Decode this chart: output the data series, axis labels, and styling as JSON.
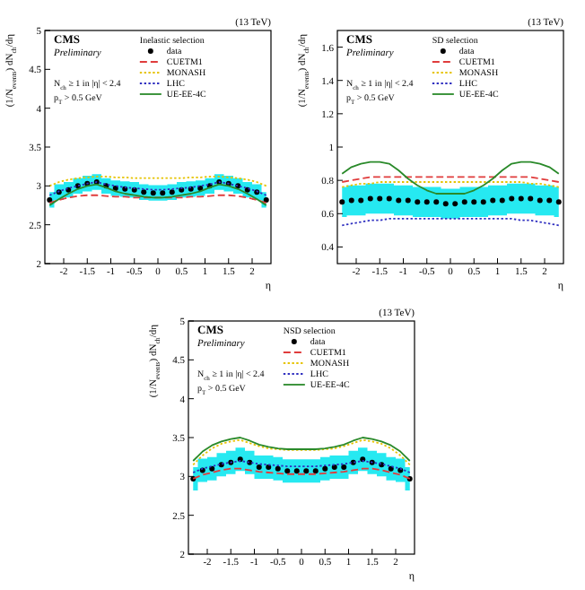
{
  "chart_data": [
    {
      "type": "line",
      "legend_title": "Inelastic selection",
      "xlabel": "η",
      "ylabel": "(1/N$_{events}$) dN$_{ch}$/dη",
      "annotations": [
        "CMS",
        "Preliminary",
        "N$_{ch}$ ≥ 1 in |η| < 2.4",
        "p$_{T}$ > 0.5 GeV",
        "(13 TeV)"
      ],
      "xlim": [
        -2.4,
        2.4
      ],
      "xticks": [
        -2,
        -1.5,
        -1,
        -0.5,
        0,
        0.5,
        1,
        1.5,
        2
      ],
      "ylim": [
        2,
        5
      ],
      "yticks": [
        2,
        2.5,
        3,
        3.5,
        4,
        4.5,
        5
      ],
      "legend": "top right",
      "x": [
        -2.3,
        -2.1,
        -1.9,
        -1.7,
        -1.5,
        -1.3,
        -1.1,
        -0.9,
        -0.7,
        -0.5,
        -0.3,
        -0.1,
        0.1,
        0.3,
        0.5,
        0.7,
        0.9,
        1.1,
        1.3,
        1.5,
        1.7,
        1.9,
        2.1,
        2.3
      ],
      "series": [
        {
          "name": "data",
          "type": "scatter",
          "marker": "circle",
          "color": "#000000",
          "values": [
            2.82,
            2.92,
            2.95,
            3.0,
            3.03,
            3.05,
            3.0,
            2.97,
            2.96,
            2.95,
            2.92,
            2.91,
            2.91,
            2.92,
            2.95,
            2.96,
            2.97,
            3.0,
            3.05,
            3.03,
            3.0,
            2.95,
            2.92,
            2.82
          ],
          "lower": [
            2.72,
            2.82,
            2.85,
            2.9,
            2.93,
            2.95,
            2.9,
            2.87,
            2.86,
            2.85,
            2.82,
            2.81,
            2.81,
            2.82,
            2.85,
            2.86,
            2.87,
            2.9,
            2.95,
            2.93,
            2.9,
            2.85,
            2.82,
            2.72
          ],
          "upper": [
            2.92,
            3.02,
            3.05,
            3.1,
            3.13,
            3.15,
            3.1,
            3.07,
            3.06,
            3.05,
            3.02,
            3.01,
            3.01,
            3.02,
            3.05,
            3.06,
            3.07,
            3.1,
            3.15,
            3.13,
            3.1,
            3.05,
            3.02,
            2.92
          ]
        },
        {
          "name": "CUETM1",
          "line_style": "dashed",
          "color": "#e03c3c",
          "values": [
            2.78,
            2.82,
            2.85,
            2.87,
            2.88,
            2.88,
            2.87,
            2.86,
            2.86,
            2.85,
            2.85,
            2.85,
            2.85,
            2.85,
            2.85,
            2.86,
            2.86,
            2.87,
            2.88,
            2.88,
            2.87,
            2.85,
            2.82,
            2.78
          ]
        },
        {
          "name": "MONASH",
          "line_style": "dotted",
          "color": "#e6c300",
          "values": [
            3.0,
            3.05,
            3.08,
            3.1,
            3.11,
            3.12,
            3.12,
            3.11,
            3.11,
            3.1,
            3.1,
            3.1,
            3.1,
            3.1,
            3.1,
            3.11,
            3.11,
            3.12,
            3.12,
            3.11,
            3.1,
            3.08,
            3.05,
            3.0
          ]
        },
        {
          "name": "LHC",
          "line_style": "dotted",
          "color": "#3030c0",
          "values": [
            2.88,
            2.93,
            2.97,
            3.0,
            3.03,
            3.05,
            3.02,
            3.0,
            2.98,
            2.97,
            2.96,
            2.95,
            2.95,
            2.96,
            2.97,
            2.98,
            3.0,
            3.02,
            3.05,
            3.03,
            3.0,
            2.97,
            2.93,
            2.88
          ]
        },
        {
          "name": "UE-EE-4C",
          "line_style": "solid",
          "color": "#2a8a2a",
          "values": [
            2.75,
            2.83,
            2.9,
            2.96,
            3.0,
            3.02,
            2.98,
            2.93,
            2.9,
            2.88,
            2.86,
            2.85,
            2.85,
            2.86,
            2.88,
            2.9,
            2.93,
            2.98,
            3.02,
            3.0,
            2.96,
            2.9,
            2.83,
            2.75
          ]
        }
      ]
    },
    {
      "type": "line",
      "legend_title": "SD selection",
      "xlabel": "η",
      "ylabel": "(1/N$_{events}$) dN$_{ch}$/dη",
      "annotations": [
        "CMS",
        "Preliminary",
        "N$_{ch}$ ≥ 1 in |η| < 2.4",
        "p$_{T}$ > 0.5 GeV",
        "(13 TeV)"
      ],
      "xlim": [
        -2.4,
        2.4
      ],
      "xticks": [
        -2,
        -1.5,
        -1,
        -0.5,
        0,
        0.5,
        1,
        1.5,
        2
      ],
      "ylim": [
        0.3,
        1.7
      ],
      "yticks": [
        0.4,
        0.6,
        0.8,
        1,
        1.2,
        1.4,
        1.6
      ],
      "legend": "top right",
      "x": [
        -2.3,
        -2.1,
        -1.9,
        -1.7,
        -1.5,
        -1.3,
        -1.1,
        -0.9,
        -0.7,
        -0.5,
        -0.3,
        -0.1,
        0.1,
        0.3,
        0.5,
        0.7,
        0.9,
        1.1,
        1.3,
        1.5,
        1.7,
        1.9,
        2.1,
        2.3
      ],
      "series": [
        {
          "name": "data",
          "type": "scatter",
          "marker": "circle",
          "color": "#000000",
          "values": [
            0.67,
            0.68,
            0.68,
            0.69,
            0.69,
            0.69,
            0.68,
            0.68,
            0.67,
            0.67,
            0.67,
            0.66,
            0.66,
            0.67,
            0.67,
            0.67,
            0.68,
            0.68,
            0.69,
            0.69,
            0.69,
            0.68,
            0.68,
            0.67
          ],
          "lower": [
            0.58,
            0.59,
            0.59,
            0.6,
            0.6,
            0.6,
            0.59,
            0.59,
            0.58,
            0.58,
            0.58,
            0.57,
            0.57,
            0.58,
            0.58,
            0.58,
            0.59,
            0.59,
            0.6,
            0.6,
            0.6,
            0.59,
            0.59,
            0.58
          ],
          "upper": [
            0.76,
            0.77,
            0.77,
            0.78,
            0.78,
            0.78,
            0.77,
            0.77,
            0.76,
            0.76,
            0.76,
            0.75,
            0.75,
            0.76,
            0.76,
            0.76,
            0.77,
            0.77,
            0.78,
            0.78,
            0.78,
            0.77,
            0.77,
            0.76
          ]
        },
        {
          "name": "CUETM1",
          "line_style": "dashed",
          "color": "#e03c3c",
          "values": [
            0.79,
            0.8,
            0.81,
            0.82,
            0.82,
            0.82,
            0.82,
            0.82,
            0.82,
            0.82,
            0.82,
            0.82,
            0.82,
            0.82,
            0.82,
            0.82,
            0.82,
            0.82,
            0.82,
            0.82,
            0.82,
            0.81,
            0.8,
            0.79
          ]
        },
        {
          "name": "MONASH",
          "line_style": "dotted",
          "color": "#e6c300",
          "values": [
            0.76,
            0.77,
            0.78,
            0.78,
            0.79,
            0.79,
            0.79,
            0.79,
            0.79,
            0.79,
            0.79,
            0.79,
            0.79,
            0.79,
            0.79,
            0.79,
            0.79,
            0.79,
            0.79,
            0.79,
            0.78,
            0.78,
            0.77,
            0.76
          ]
        },
        {
          "name": "LHC",
          "line_style": "dotted",
          "color": "#3030c0",
          "values": [
            0.53,
            0.54,
            0.55,
            0.56,
            0.56,
            0.57,
            0.57,
            0.57,
            0.57,
            0.57,
            0.57,
            0.57,
            0.57,
            0.57,
            0.57,
            0.57,
            0.57,
            0.57,
            0.57,
            0.56,
            0.56,
            0.55,
            0.54,
            0.53
          ]
        },
        {
          "name": "UE-EE-4C",
          "line_style": "solid",
          "color": "#2a8a2a",
          "values": [
            0.84,
            0.88,
            0.9,
            0.91,
            0.91,
            0.9,
            0.86,
            0.81,
            0.77,
            0.74,
            0.72,
            0.72,
            0.72,
            0.72,
            0.74,
            0.77,
            0.81,
            0.86,
            0.9,
            0.91,
            0.91,
            0.9,
            0.88,
            0.84
          ]
        }
      ]
    },
    {
      "type": "line",
      "legend_title": "NSD selection",
      "xlabel": "η",
      "ylabel": "(1/N$_{events}$) dN$_{ch}$/dη",
      "annotations": [
        "CMS",
        "Preliminary",
        "N$_{ch}$ ≥ 1 in |η| < 2.4",
        "p$_{T}$ > 0.5 GeV",
        "(13 TeV)"
      ],
      "xlim": [
        -2.4,
        2.4
      ],
      "xticks": [
        -2,
        -1.5,
        -1,
        -0.5,
        0,
        0.5,
        1,
        1.5,
        2
      ],
      "ylim": [
        2,
        5
      ],
      "yticks": [
        2,
        2.5,
        3,
        3.5,
        4,
        4.5,
        5
      ],
      "legend": "top right",
      "x": [
        -2.3,
        -2.1,
        -1.9,
        -1.7,
        -1.5,
        -1.3,
        -1.1,
        -0.9,
        -0.7,
        -0.5,
        -0.3,
        -0.1,
        0.1,
        0.3,
        0.5,
        0.7,
        0.9,
        1.1,
        1.3,
        1.5,
        1.7,
        1.9,
        2.1,
        2.3
      ],
      "series": [
        {
          "name": "data",
          "type": "scatter",
          "marker": "circle",
          "color": "#000000",
          "values": [
            2.97,
            3.08,
            3.1,
            3.15,
            3.18,
            3.22,
            3.18,
            3.12,
            3.12,
            3.1,
            3.07,
            3.07,
            3.07,
            3.07,
            3.1,
            3.12,
            3.12,
            3.18,
            3.22,
            3.18,
            3.15,
            3.1,
            3.08,
            2.97
          ],
          "lower": [
            2.82,
            2.93,
            2.95,
            3.0,
            3.03,
            3.07,
            3.03,
            2.97,
            2.97,
            2.95,
            2.92,
            2.92,
            2.92,
            2.92,
            2.95,
            2.97,
            2.97,
            3.03,
            3.07,
            3.03,
            3.0,
            2.95,
            2.93,
            2.82
          ],
          "upper": [
            3.12,
            3.23,
            3.25,
            3.3,
            3.33,
            3.37,
            3.33,
            3.27,
            3.27,
            3.25,
            3.22,
            3.22,
            3.22,
            3.22,
            3.25,
            3.27,
            3.27,
            3.33,
            3.37,
            3.33,
            3.3,
            3.25,
            3.23,
            3.12
          ]
        },
        {
          "name": "CUETM1",
          "line_style": "dashed",
          "color": "#e03c3c",
          "values": [
            2.97,
            3.02,
            3.05,
            3.08,
            3.1,
            3.1,
            3.08,
            3.06,
            3.05,
            3.04,
            3.03,
            3.03,
            3.03,
            3.03,
            3.04,
            3.05,
            3.06,
            3.08,
            3.1,
            3.1,
            3.08,
            3.05,
            3.02,
            2.97
          ]
        },
        {
          "name": "MONASH",
          "line_style": "dotted",
          "color": "#e6c300",
          "values": [
            3.15,
            3.27,
            3.36,
            3.42,
            3.45,
            3.47,
            3.43,
            3.39,
            3.36,
            3.35,
            3.34,
            3.34,
            3.34,
            3.34,
            3.35,
            3.36,
            3.39,
            3.43,
            3.47,
            3.45,
            3.42,
            3.36,
            3.27,
            3.15
          ]
        },
        {
          "name": "LHC",
          "line_style": "dotted",
          "color": "#3030c0",
          "values": [
            3.05,
            3.1,
            3.13,
            3.16,
            3.18,
            3.2,
            3.18,
            3.16,
            3.15,
            3.14,
            3.13,
            3.13,
            3.13,
            3.13,
            3.14,
            3.15,
            3.16,
            3.18,
            3.2,
            3.18,
            3.16,
            3.13,
            3.1,
            3.05
          ]
        },
        {
          "name": "UE-EE-4C",
          "line_style": "solid",
          "color": "#2a8a2a",
          "values": [
            3.2,
            3.32,
            3.4,
            3.45,
            3.48,
            3.5,
            3.46,
            3.41,
            3.38,
            3.36,
            3.35,
            3.35,
            3.35,
            3.35,
            3.36,
            3.38,
            3.41,
            3.46,
            3.5,
            3.48,
            3.45,
            3.4,
            3.32,
            3.2
          ]
        }
      ]
    }
  ]
}
